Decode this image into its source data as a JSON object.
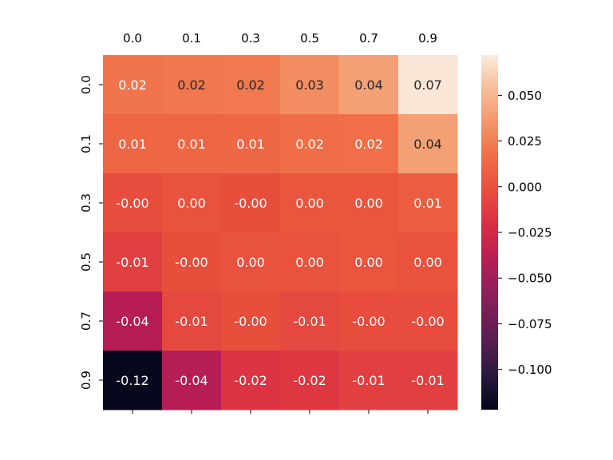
{
  "chart_data": {
    "type": "heatmap",
    "x_ticks": [
      "0.0",
      "0.1",
      "0.3",
      "0.5",
      "0.7",
      "0.9"
    ],
    "y_ticks": [
      "0.0",
      "0.1",
      "0.3",
      "0.5",
      "0.7",
      "0.9"
    ],
    "x_axis_position": "top",
    "values": [
      [
        0.02,
        0.021,
        0.022,
        0.031,
        0.04,
        0.07
      ],
      [
        0.012,
        0.012,
        0.013,
        0.016,
        0.017,
        0.04
      ],
      [
        -0.003,
        0.001,
        -0.002,
        0.002,
        0.002,
        0.006
      ],
      [
        -0.01,
        -0.002,
        0.001,
        0.001,
        0.002,
        0.001
      ],
      [
        -0.04,
        -0.005,
        -0.002,
        -0.005,
        -0.003,
        -0.003
      ],
      [
        -0.12,
        -0.04,
        -0.017,
        -0.015,
        -0.01,
        -0.01
      ]
    ],
    "labels": [
      [
        "0.02",
        "0.02",
        "0.02",
        "0.03",
        "0.04",
        "0.07"
      ],
      [
        "0.01",
        "0.01",
        "0.01",
        "0.02",
        "0.02",
        "0.04"
      ],
      [
        "-0.00",
        "0.00",
        "-0.00",
        "0.00",
        "0.00",
        "0.01"
      ],
      [
        "-0.01",
        "-0.00",
        "0.00",
        "0.00",
        "0.00",
        "0.00"
      ],
      [
        "-0.04",
        "-0.01",
        "-0.00",
        "-0.01",
        "-0.00",
        "-0.00"
      ],
      [
        "-0.12",
        "-0.04",
        "-0.02",
        "-0.02",
        "-0.01",
        "-0.01"
      ]
    ],
    "colorbar": {
      "range": [
        -0.122,
        0.072
      ],
      "ticks": [
        0.05,
        0.025,
        0.0,
        -0.025,
        -0.05,
        -0.075,
        -0.1
      ],
      "tick_labels": [
        "0.050",
        "0.025",
        "0.000",
        "−0.025",
        "−0.050",
        "−0.075",
        "−0.100"
      ],
      "colormap": "rocket"
    },
    "title": "",
    "xlabel": "",
    "ylabel": ""
  }
}
